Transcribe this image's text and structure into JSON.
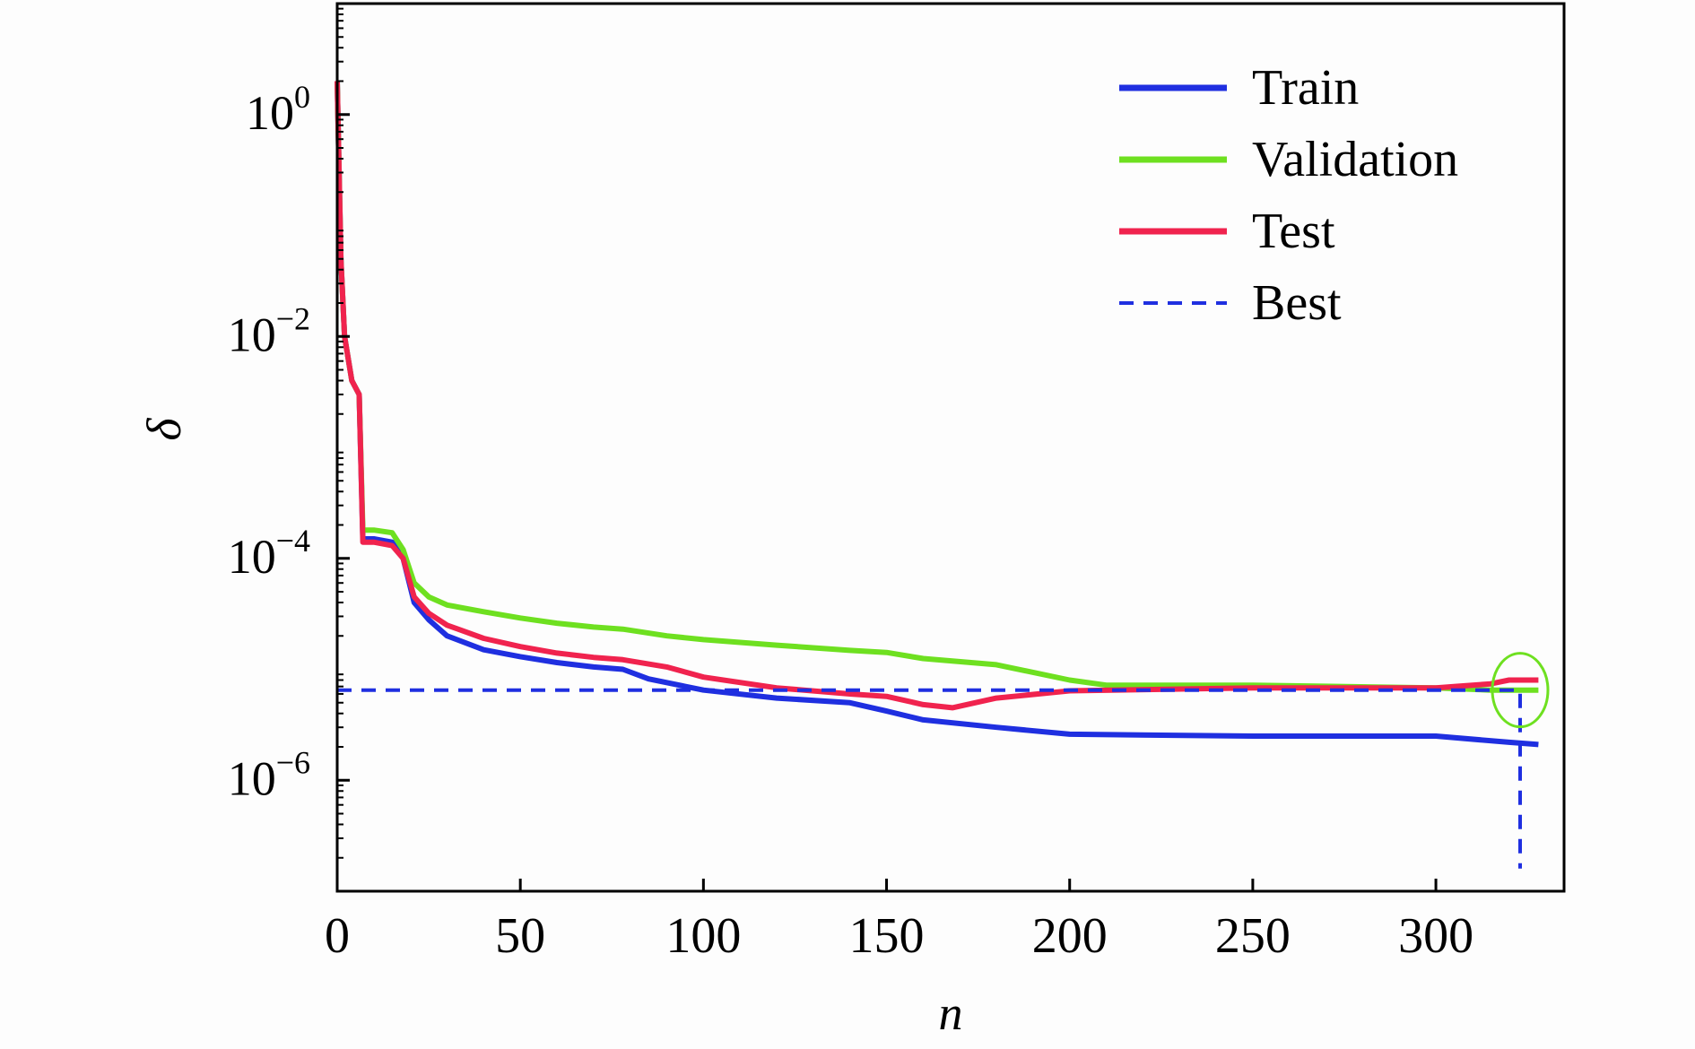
{
  "chart_data": {
    "type": "line",
    "title": "",
    "xlabel": "n",
    "ylabel": "δ",
    "x_scale": "linear",
    "y_scale": "log",
    "xlim": [
      0,
      335
    ],
    "ylim": [
      1e-07,
      10
    ],
    "x_ticks": [
      0,
      50,
      100,
      150,
      200,
      250,
      300
    ],
    "x_tick_labels": [
      "0",
      "50",
      "100",
      "150",
      "200",
      "250",
      "300"
    ],
    "y_ticks": [
      1,
      0.01,
      0.0001,
      1e-06
    ],
    "y_tick_labels": [
      {
        "base": "10",
        "exp": "0"
      },
      {
        "base": "10",
        "exp": "−2"
      },
      {
        "base": "10",
        "exp": "−4"
      },
      {
        "base": "10",
        "exp": "−6"
      }
    ],
    "grid": false,
    "legend_position": "top-right",
    "series": [
      {
        "name": "Train",
        "color": "#1f2fe0",
        "style": "solid",
        "points": [
          [
            0,
            2.0
          ],
          [
            1,
            0.05
          ],
          [
            2,
            0.01
          ],
          [
            4,
            0.004
          ],
          [
            6,
            0.003
          ],
          [
            7,
            0.00015
          ],
          [
            10,
            0.00015
          ],
          [
            15,
            0.00014
          ],
          [
            18,
            0.0001
          ],
          [
            21,
            4e-05
          ],
          [
            25,
            2.8e-05
          ],
          [
            30,
            2e-05
          ],
          [
            40,
            1.5e-05
          ],
          [
            50,
            1.3e-05
          ],
          [
            60,
            1.15e-05
          ],
          [
            70,
            1.05e-05
          ],
          [
            78,
            1e-05
          ],
          [
            85,
            8.2e-06
          ],
          [
            100,
            6.5e-06
          ],
          [
            120,
            5.5e-06
          ],
          [
            140,
            5e-06
          ],
          [
            150,
            4.2e-06
          ],
          [
            160,
            3.5e-06
          ],
          [
            180,
            3e-06
          ],
          [
            200,
            2.6e-06
          ],
          [
            250,
            2.5e-06
          ],
          [
            300,
            2.5e-06
          ],
          [
            320,
            2.2e-06
          ],
          [
            328,
            2.1e-06
          ]
        ]
      },
      {
        "name": "Validation",
        "color": "#6ee020",
        "style": "solid",
        "points": [
          [
            0,
            2.0
          ],
          [
            1,
            0.05
          ],
          [
            2,
            0.01
          ],
          [
            4,
            0.004
          ],
          [
            6,
            0.003
          ],
          [
            7,
            0.00018
          ],
          [
            10,
            0.00018
          ],
          [
            15,
            0.00017
          ],
          [
            18,
            0.00012
          ],
          [
            21,
            6e-05
          ],
          [
            25,
            4.5e-05
          ],
          [
            30,
            3.8e-05
          ],
          [
            40,
            3.3e-05
          ],
          [
            50,
            2.9e-05
          ],
          [
            60,
            2.6e-05
          ],
          [
            70,
            2.4e-05
          ],
          [
            78,
            2.3e-05
          ],
          [
            90,
            2e-05
          ],
          [
            100,
            1.85e-05
          ],
          [
            120,
            1.65e-05
          ],
          [
            140,
            1.48e-05
          ],
          [
            150,
            1.42e-05
          ],
          [
            160,
            1.25e-05
          ],
          [
            180,
            1.1e-05
          ],
          [
            200,
            8e-06
          ],
          [
            210,
            7.2e-06
          ],
          [
            250,
            7.2e-06
          ],
          [
            300,
            6.8e-06
          ],
          [
            315,
            6.5e-06
          ],
          [
            328,
            6.5e-06
          ]
        ]
      },
      {
        "name": "Test",
        "color": "#f0234e",
        "style": "solid",
        "points": [
          [
            0,
            2.0
          ],
          [
            1,
            0.05
          ],
          [
            2,
            0.01
          ],
          [
            4,
            0.004
          ],
          [
            6,
            0.003
          ],
          [
            7,
            0.00014
          ],
          [
            10,
            0.00014
          ],
          [
            15,
            0.00013
          ],
          [
            18,
            0.0001
          ],
          [
            21,
            4.5e-05
          ],
          [
            25,
            3.2e-05
          ],
          [
            30,
            2.5e-05
          ],
          [
            40,
            1.9e-05
          ],
          [
            50,
            1.6e-05
          ],
          [
            60,
            1.4e-05
          ],
          [
            70,
            1.28e-05
          ],
          [
            78,
            1.22e-05
          ],
          [
            90,
            1.05e-05
          ],
          [
            100,
            8.5e-06
          ],
          [
            120,
            6.8e-06
          ],
          [
            140,
            6e-06
          ],
          [
            150,
            5.7e-06
          ],
          [
            160,
            4.8e-06
          ],
          [
            168,
            4.5e-06
          ],
          [
            180,
            5.5e-06
          ],
          [
            200,
            6.4e-06
          ],
          [
            250,
            6.8e-06
          ],
          [
            300,
            6.8e-06
          ],
          [
            315,
            7.4e-06
          ],
          [
            320,
            8e-06
          ],
          [
            328,
            8e-06
          ]
        ]
      },
      {
        "name": "Best",
        "color": "#1f2fe0",
        "style": "dashed",
        "points": [
          [
            0,
            6.5e-06
          ],
          [
            323,
            6.5e-06
          ],
          [
            323,
            1.6e-07
          ]
        ]
      }
    ],
    "annotations": [
      {
        "type": "circle",
        "color": "#6ee020",
        "x": 323,
        "y": 6.5e-06
      }
    ]
  }
}
